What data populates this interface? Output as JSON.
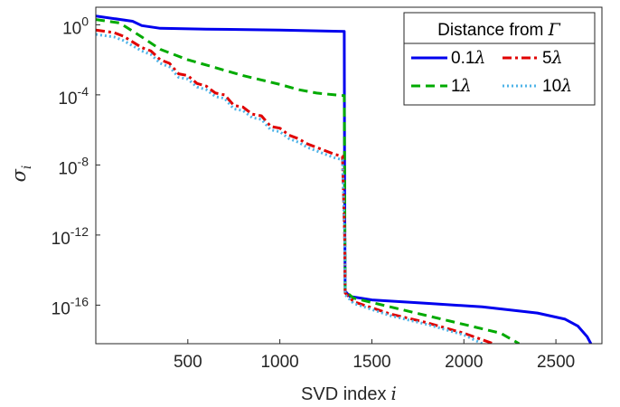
{
  "chart_data": {
    "type": "line",
    "title": "",
    "xlabel": "SVD index",
    "xlabel_var": "i",
    "ylabel_var": "σ",
    "ylabel_sub": "i",
    "xlim": [
      0,
      2750
    ],
    "ylim_log10": [
      -18.2,
      1.0
    ],
    "yscale": "log",
    "x_ticks": [
      500,
      1000,
      1500,
      2000,
      2500
    ],
    "x_tick_labels": [
      "500",
      "1000",
      "1500",
      "2000",
      "2500"
    ],
    "y_ticks": [
      {
        "exp": 0,
        "base": "10",
        "sup": "0"
      },
      {
        "exp": -4,
        "base": "10",
        "sup": "-4"
      },
      {
        "exp": -8,
        "base": "10",
        "sup": "-8"
      },
      {
        "exp": -12,
        "base": "10",
        "sup": "-12"
      },
      {
        "exp": -16,
        "base": "10",
        "sup": "-16"
      }
    ],
    "grid": false,
    "legend": {
      "title_prefix": "Distance from ",
      "title_symbol": "Γ",
      "placement": "top-right",
      "columns": 2
    },
    "series": [
      {
        "name": "0.1λ",
        "name_num": "0.1",
        "color": "#0000ee",
        "style": "solid",
        "points": [
          [
            0,
            0.5
          ],
          [
            200,
            0.2
          ],
          [
            250,
            -0.05
          ],
          [
            350,
            -0.2
          ],
          [
            600,
            -0.25
          ],
          [
            1000,
            -0.3
          ],
          [
            1350,
            -0.38
          ],
          [
            1352,
            -9.0
          ],
          [
            1355,
            -15.2
          ],
          [
            1380,
            -15.5
          ],
          [
            1500,
            -15.7
          ],
          [
            1800,
            -15.9
          ],
          [
            2100,
            -16.1
          ],
          [
            2400,
            -16.45
          ],
          [
            2550,
            -16.8
          ],
          [
            2620,
            -17.2
          ],
          [
            2670,
            -17.8
          ],
          [
            2690,
            -18.2
          ]
        ]
      },
      {
        "name": "1λ",
        "name_num": "1",
        "color": "#00aa00",
        "style": "dashed",
        "points": [
          [
            0,
            0.3
          ],
          [
            130,
            0.1
          ],
          [
            250,
            -0.7
          ],
          [
            350,
            -1.4
          ],
          [
            500,
            -2.0
          ],
          [
            650,
            -2.45
          ],
          [
            800,
            -2.9
          ],
          [
            900,
            -3.15
          ],
          [
            1000,
            -3.4
          ],
          [
            1100,
            -3.7
          ],
          [
            1200,
            -3.9
          ],
          [
            1300,
            -4.0
          ],
          [
            1350,
            -4.05
          ],
          [
            1352,
            -8.0
          ],
          [
            1355,
            -15.2
          ],
          [
            1400,
            -15.6
          ],
          [
            1600,
            -16.1
          ],
          [
            1800,
            -16.6
          ],
          [
            2000,
            -17.1
          ],
          [
            2200,
            -17.6
          ],
          [
            2300,
            -18.2
          ]
        ]
      },
      {
        "name": "5λ",
        "name_num": "5",
        "color": "#e00000",
        "style": "dashdot",
        "points": [
          [
            0,
            -0.3
          ],
          [
            100,
            -0.45
          ],
          [
            150,
            -0.65
          ],
          [
            250,
            -1.3
          ],
          [
            300,
            -1.5
          ],
          [
            350,
            -2.0
          ],
          [
            400,
            -2.2
          ],
          [
            450,
            -2.8
          ],
          [
            500,
            -2.9
          ],
          [
            550,
            -3.35
          ],
          [
            600,
            -3.5
          ],
          [
            650,
            -3.9
          ],
          [
            700,
            -4.0
          ],
          [
            750,
            -4.6
          ],
          [
            800,
            -4.7
          ],
          [
            850,
            -5.1
          ],
          [
            900,
            -5.2
          ],
          [
            950,
            -5.8
          ],
          [
            1000,
            -5.9
          ],
          [
            1050,
            -6.3
          ],
          [
            1100,
            -6.5
          ],
          [
            1150,
            -6.8
          ],
          [
            1200,
            -7.0
          ],
          [
            1250,
            -7.2
          ],
          [
            1300,
            -7.4
          ],
          [
            1340,
            -7.5
          ],
          [
            1352,
            -12.0
          ],
          [
            1355,
            -15.3
          ],
          [
            1400,
            -15.8
          ],
          [
            1600,
            -16.5
          ],
          [
            1800,
            -17.0
          ],
          [
            2000,
            -17.6
          ],
          [
            2160,
            -18.2
          ]
        ]
      },
      {
        "name": "10λ",
        "name_num": "10",
        "color": "#4fb4e8",
        "style": "dotted",
        "points": [
          [
            0,
            -0.55
          ],
          [
            100,
            -0.7
          ],
          [
            150,
            -0.9
          ],
          [
            250,
            -1.5
          ],
          [
            300,
            -1.7
          ],
          [
            350,
            -2.2
          ],
          [
            400,
            -2.4
          ],
          [
            450,
            -3.0
          ],
          [
            500,
            -3.1
          ],
          [
            550,
            -3.55
          ],
          [
            600,
            -3.7
          ],
          [
            650,
            -4.1
          ],
          [
            700,
            -4.2
          ],
          [
            750,
            -4.8
          ],
          [
            800,
            -4.9
          ],
          [
            850,
            -5.3
          ],
          [
            900,
            -5.4
          ],
          [
            950,
            -6.0
          ],
          [
            1000,
            -6.1
          ],
          [
            1050,
            -6.5
          ],
          [
            1100,
            -6.7
          ],
          [
            1150,
            -7.0
          ],
          [
            1200,
            -7.2
          ],
          [
            1250,
            -7.4
          ],
          [
            1300,
            -7.6
          ],
          [
            1340,
            -7.7
          ],
          [
            1352,
            -12.0
          ],
          [
            1355,
            -15.4
          ],
          [
            1400,
            -15.9
          ],
          [
            1600,
            -16.6
          ],
          [
            1800,
            -17.1
          ],
          [
            2000,
            -17.7
          ],
          [
            2100,
            -18.2
          ]
        ]
      }
    ]
  }
}
